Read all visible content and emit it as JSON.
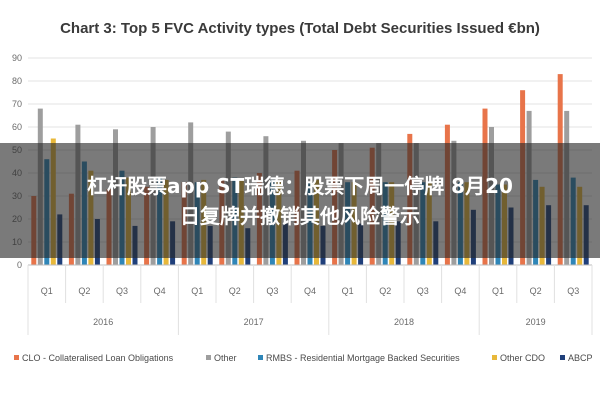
{
  "chart_data": {
    "type": "bar",
    "title": "Chart 3: Top 5 FVC Activity types (Total Debt Securities Issued €bn)",
    "xlabel": "",
    "ylabel": "",
    "ylim": [
      0,
      90
    ],
    "yticks": [
      0,
      10,
      20,
      30,
      40,
      50,
      60,
      70,
      80,
      90
    ],
    "grid": true,
    "legend_position": "bottom",
    "categories": [
      "Q1",
      "Q2",
      "Q3",
      "Q4",
      "Q1",
      "Q2",
      "Q3",
      "Q4",
      "Q1",
      "Q2",
      "Q3",
      "Q4",
      "Q1",
      "Q2",
      "Q3"
    ],
    "year_groups": [
      {
        "label": "2016",
        "count": 4
      },
      {
        "label": "2017",
        "count": 4
      },
      {
        "label": "2018",
        "count": 4
      },
      {
        "label": "2019",
        "count": 3
      }
    ],
    "series": [
      {
        "name": "CLO - Collateralised Loan Obligations",
        "color": "#e8744a",
        "values": [
          30,
          31,
          33,
          34,
          36,
          37,
          40,
          41,
          50,
          51,
          57,
          61,
          68,
          76,
          83
        ]
      },
      {
        "name": "Other",
        "color": "#9e9e9e",
        "values": [
          68,
          61,
          59,
          60,
          62,
          58,
          56,
          54,
          53,
          53,
          53,
          54,
          60,
          67,
          67
        ]
      },
      {
        "name": "RMBS - Residential Mortgage Backed Securities",
        "color": "#2f86b8",
        "values": [
          46,
          45,
          41,
          38,
          36,
          38,
          37,
          36,
          36,
          36,
          36,
          36,
          35,
          37,
          38
        ]
      },
      {
        "name": "Other CDO",
        "color": "#e8b83a",
        "values": [
          55,
          41,
          38,
          37,
          37,
          37,
          37,
          37,
          36,
          36,
          36,
          36,
          35,
          34,
          34
        ]
      },
      {
        "name": "ABCP",
        "color": "#1f3f7a",
        "values": [
          22,
          20,
          17,
          19,
          17,
          16,
          18,
          17,
          18,
          19,
          19,
          24,
          25,
          26,
          26
        ]
      }
    ]
  },
  "overlay": {
    "line1": "杠杆股票app ST瑞德：股票下周一停牌 8月20",
    "line2": "日复牌并撤销其他风险警示"
  }
}
